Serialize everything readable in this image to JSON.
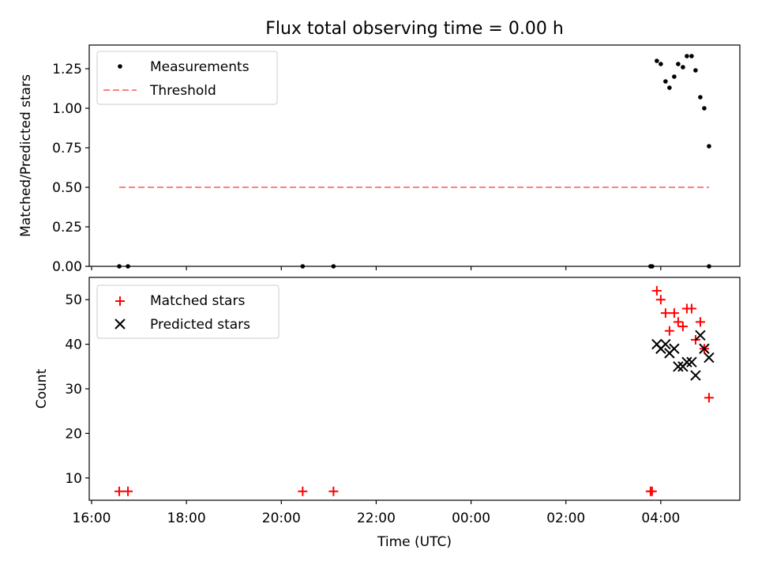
{
  "title": "Flux total observing time = 0.00 h",
  "chart_data": [
    {
      "type": "scatter",
      "ylabel": "Matched/Predicted stars",
      "xlabel": "",
      "ylim": [
        0.0,
        1.4
      ],
      "yticks": [
        0.0,
        0.25,
        0.5,
        0.75,
        1.0,
        1.25
      ],
      "ytick_labels": [
        "0.00",
        "0.25",
        "0.50",
        "0.75",
        "1.00",
        "1.25"
      ],
      "xlim": [
        "16:00",
        "05:40"
      ],
      "legend_position": "top-left",
      "series": [
        {
          "name": "Measurements",
          "marker": "dot",
          "color": "#000000",
          "x": [
            "16:35",
            "16:46",
            "20:27",
            "21:06",
            "03:47",
            "03:49",
            "03:55",
            "04:00",
            "04:06",
            "04:11",
            "04:17",
            "04:22",
            "04:28",
            "04:33",
            "04:39",
            "04:44",
            "04:50",
            "04:55",
            "05:01"
          ],
          "y": [
            0,
            0,
            0,
            0,
            0,
            0,
            1.3,
            1.28,
            1.17,
            1.13,
            1.2,
            1.28,
            1.26,
            1.33,
            1.33,
            1.24,
            1.07,
            1.0,
            0.76
          ]
        },
        {
          "name": "Threshold",
          "marker": "dashed-line",
          "color": "#ff7f7f",
          "x": [
            "16:35",
            "05:01"
          ],
          "y": [
            0.5,
            0.5
          ]
        }
      ],
      "extra_points": [
        {
          "x": "05:01",
          "y": 0
        }
      ]
    },
    {
      "type": "scatter",
      "ylabel": "Count",
      "xlabel": "Time (UTC)",
      "ylim": [
        5,
        55
      ],
      "yticks": [
        10,
        20,
        30,
        40,
        50
      ],
      "ytick_labels": [
        "10",
        "20",
        "30",
        "40",
        "50"
      ],
      "xticks": [
        "16:00",
        "18:00",
        "20:00",
        "22:00",
        "00:00",
        "02:00",
        "04:00"
      ],
      "xlim": [
        "16:00",
        "05:40"
      ],
      "legend_position": "top-left",
      "series": [
        {
          "name": "Matched stars",
          "marker": "plus",
          "color": "#ff0000",
          "x": [
            "16:35",
            "16:46",
            "20:27",
            "21:06",
            "03:47",
            "03:49",
            "03:55",
            "04:00",
            "04:06",
            "04:11",
            "04:17",
            "04:22",
            "04:28",
            "04:33",
            "04:39",
            "04:44",
            "04:50",
            "04:55",
            "05:01"
          ],
          "y": [
            7,
            7,
            7,
            7,
            7,
            7,
            52,
            50,
            47,
            43,
            47,
            45,
            44,
            48,
            48,
            41,
            45,
            39,
            28
          ]
        },
        {
          "name": "Predicted stars",
          "marker": "x",
          "color": "#000000",
          "x": [
            "03:55",
            "04:00",
            "04:06",
            "04:11",
            "04:17",
            "04:22",
            "04:28",
            "04:33",
            "04:39",
            "04:44",
            "04:50",
            "04:55",
            "05:01"
          ],
          "y": [
            40,
            39,
            40,
            38,
            39,
            35,
            35,
            36,
            36,
            33,
            42,
            39,
            37
          ]
        }
      ]
    }
  ]
}
